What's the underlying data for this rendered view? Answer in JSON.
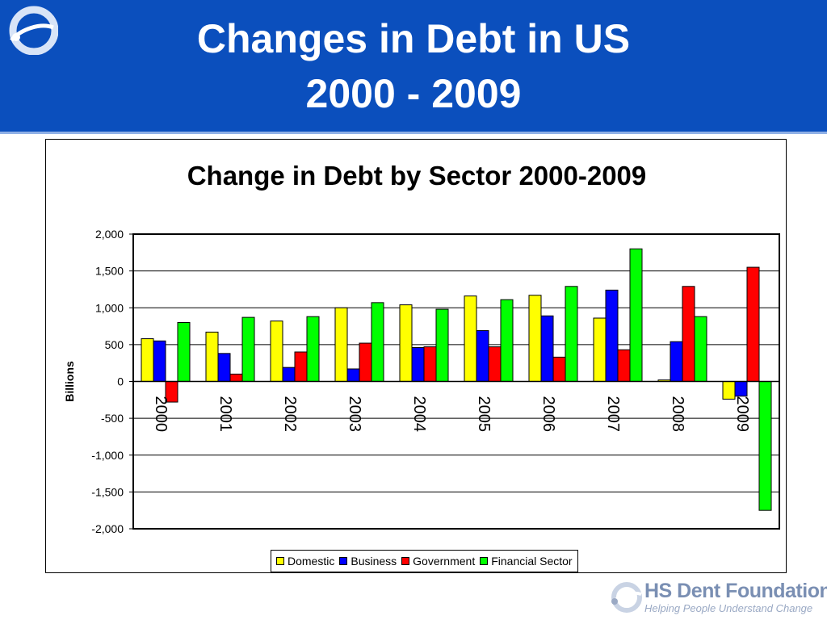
{
  "header": {
    "title_line1": "Changes in Debt in US",
    "title_line2": "2000 - 2009",
    "logo_icon": "foundation-logo-icon"
  },
  "footer": {
    "org_name": "HS Dent Foundation",
    "tagline": "Helping People Understand Change",
    "logo_icon": "foundation-logo-icon"
  },
  "colors": {
    "header_bg": "#0b4fbd",
    "Domestic": "#ffff00",
    "Business": "#0000ff",
    "Government": "#ff0000",
    "Financial Sector": "#00ff00"
  },
  "chart_data": {
    "type": "bar",
    "title": "Change in Debt by Sector 2000-2009",
    "xlabel": "",
    "ylabel": "Billions",
    "ylim": [
      -2000,
      2000
    ],
    "yticks": [
      2000,
      1500,
      1000,
      500,
      0,
      -500,
      -1000,
      -1500,
      -2000
    ],
    "ytick_labels": [
      "2,000",
      "1,500",
      "1,000",
      "500",
      "0",
      "-500",
      "-1,000",
      "-1,500",
      "-2,000"
    ],
    "grid": true,
    "legend_position": "bottom",
    "categories": [
      "2000",
      "2001",
      "2002",
      "2003",
      "2004",
      "2005",
      "2006",
      "2007",
      "2008",
      "2009"
    ],
    "series": [
      {
        "name": "Domestic",
        "color": "#ffff00",
        "values": [
          580,
          670,
          820,
          1000,
          1040,
          1160,
          1170,
          860,
          20,
          -240
        ]
      },
      {
        "name": "Business",
        "color": "#0000ff",
        "values": [
          550,
          380,
          190,
          170,
          460,
          690,
          890,
          1240,
          540,
          -200
        ]
      },
      {
        "name": "Government",
        "color": "#ff0000",
        "values": [
          -280,
          100,
          400,
          520,
          470,
          470,
          330,
          430,
          1290,
          1550
        ]
      },
      {
        "name": "Financial Sector",
        "color": "#00ff00",
        "values": [
          800,
          870,
          880,
          1070,
          980,
          1110,
          1290,
          1800,
          880,
          -1750
        ]
      }
    ]
  }
}
